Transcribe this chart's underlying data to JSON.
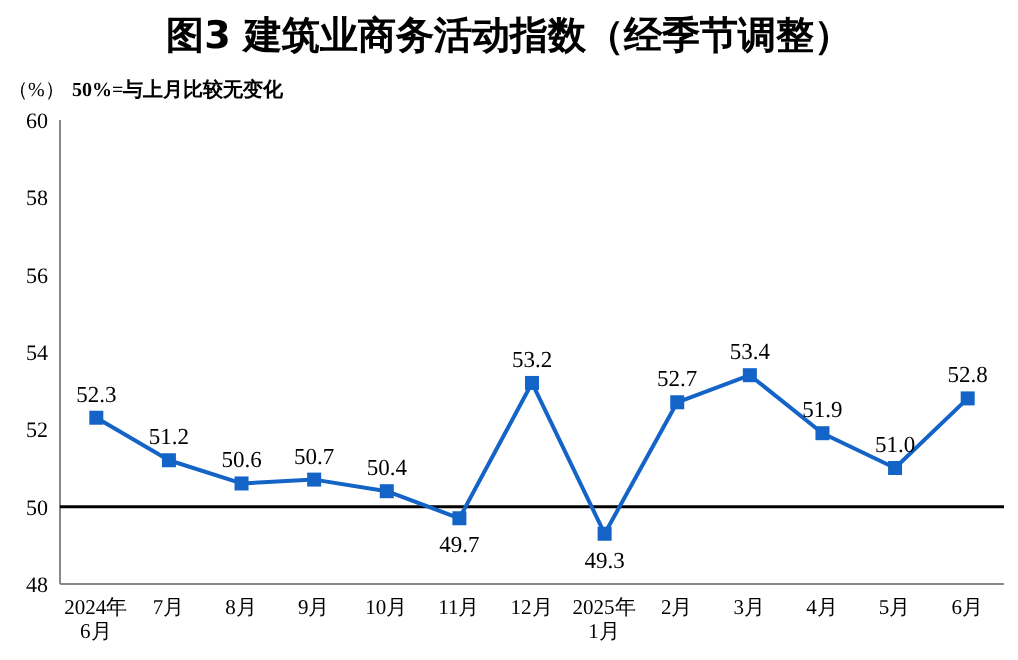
{
  "chart_data": {
    "type": "line",
    "title": "图3  建筑业商务活动指数（经季节调整）",
    "ylabel": "（%）",
    "annotations": [
      "50%=与上月比较无变化"
    ],
    "categories": [
      "2024年\n6月",
      "7月",
      "8月",
      "9月",
      "10月",
      "11月",
      "12月",
      "2025年\n1月",
      "2月",
      "3月",
      "4月",
      "5月",
      "6月"
    ],
    "series": [
      {
        "color": "#1464c8",
        "values": [
          52.3,
          51.2,
          50.6,
          50.7,
          50.4,
          49.7,
          53.2,
          49.3,
          52.7,
          53.4,
          51.9,
          51.0,
          52.8
        ],
        "value_labels": [
          "52.3",
          "51.2",
          "50.6",
          "50.7",
          "50.4",
          "49.7",
          "53.2",
          "49.3",
          "52.7",
          "53.4",
          "51.9",
          "51.0",
          "52.8"
        ]
      }
    ],
    "ylim": [
      48,
      60
    ],
    "yticks": [
      48,
      50,
      52,
      54,
      56,
      58,
      60
    ],
    "ref_lines": [
      {
        "axis": "y",
        "value": 50,
        "color": "#000000"
      }
    ],
    "marker": "square",
    "line_style": "solid",
    "grid": false
  }
}
